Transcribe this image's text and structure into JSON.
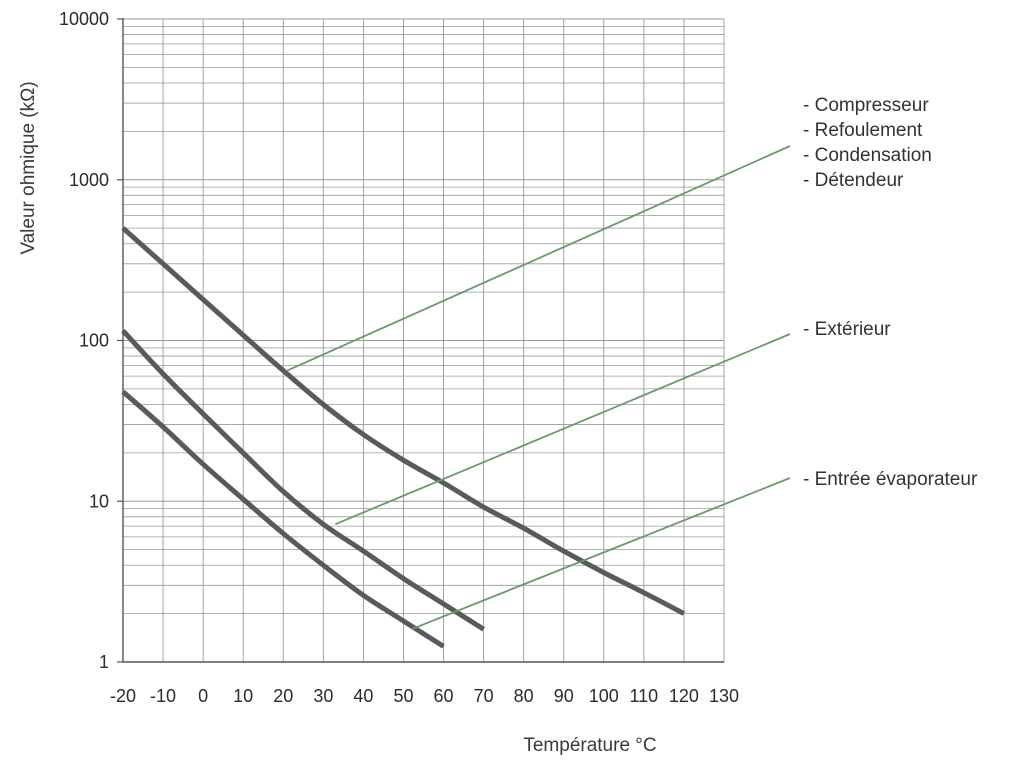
{
  "chart_data": {
    "type": "line",
    "title": "",
    "xlabel": "Température  °C",
    "ylabel": "Valeur ohmique  (kΩ)",
    "xlim": [
      -20,
      130
    ],
    "ylim": [
      1,
      10000
    ],
    "yscale": "log",
    "grid": true,
    "x_ticks": [
      -20,
      -10,
      0,
      10,
      20,
      30,
      40,
      50,
      60,
      70,
      80,
      90,
      100,
      110,
      120,
      130
    ],
    "x_tick_labels": [
      "-20",
      "-10",
      "0",
      "10",
      "20",
      "30",
      "40",
      "50",
      "60",
      "70",
      "80",
      "90",
      "100",
      "110",
      "120",
      "130"
    ],
    "y_ticks": [
      1,
      10,
      100,
      1000,
      10000
    ],
    "y_tick_labels": [
      "1",
      "10",
      "100",
      "1000",
      "10000"
    ],
    "colors": {
      "curve": "#5a5a5a",
      "leader": "#6a9a6a",
      "grid": "#9a9a9a",
      "axis": "#555555"
    },
    "series": [
      {
        "x": [
          -20,
          -10,
          0,
          10,
          20,
          30,
          40,
          50,
          60,
          70,
          80,
          90,
          100,
          110,
          120
        ],
        "y": [
          500,
          300,
          180,
          108,
          65,
          40,
          26,
          18,
          13,
          9.2,
          6.8,
          4.9,
          3.6,
          2.7,
          2.0
        ]
      },
      {
        "x": [
          -20,
          -10,
          0,
          10,
          20,
          30,
          40,
          50,
          60,
          70
        ],
        "y": [
          115,
          62,
          35,
          20,
          11.5,
          7.2,
          4.9,
          3.3,
          2.3,
          1.6
        ]
      },
      {
        "x": [
          -20,
          -10,
          0,
          10,
          20,
          30,
          40,
          50,
          60
        ],
        "y": [
          48,
          29,
          17,
          10.3,
          6.3,
          4.0,
          2.6,
          1.8,
          1.25
        ]
      }
    ],
    "annotations": [
      {
        "lines": [
          "- Compresseur",
          "- Refoulement",
          "- Condensation",
          "- Détendeur"
        ],
        "series_index": 0,
        "point": [
          21,
          65
        ]
      },
      {
        "lines": [
          "- Extérieur"
        ],
        "series_index": 1,
        "point": [
          33,
          7.2
        ]
      },
      {
        "lines": [
          "- Entrée évaporateur"
        ],
        "series_index": 2,
        "point": [
          52,
          1.6
        ]
      }
    ]
  }
}
